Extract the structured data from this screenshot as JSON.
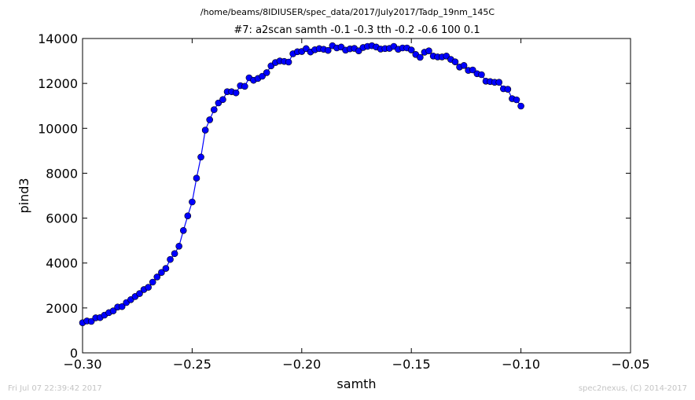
{
  "chart_data": {
    "type": "line",
    "title": "/home/beams/8IDIUSER/spec_data/2017/July2017/Tadp_19nm_145C",
    "subtitle": "#7: a2scan  samth -0.1 -0.3  tth -0.2 -0.6  100 0.1",
    "xlabel": "samth",
    "ylabel": "pind3",
    "xlim": [
      -0.3,
      -0.05
    ],
    "ylim": [
      0,
      14000
    ],
    "x_ticks": [
      "−0.30",
      "−0.25",
      "−0.20",
      "−0.15",
      "−0.10",
      "−0.05"
    ],
    "y_ticks": [
      "0",
      "2000",
      "4000",
      "6000",
      "8000",
      "10000",
      "12000",
      "14000"
    ],
    "grid": false,
    "series": [
      {
        "color": "#0000ff",
        "x": [
          -0.3,
          -0.298,
          -0.296,
          -0.294,
          -0.292,
          -0.29,
          -0.288,
          -0.286,
          -0.284,
          -0.282,
          -0.28,
          -0.278,
          -0.276,
          -0.274,
          -0.272,
          -0.27,
          -0.268,
          -0.266,
          -0.264,
          -0.262,
          -0.26,
          -0.258,
          -0.256,
          -0.254,
          -0.252,
          -0.25,
          -0.248,
          -0.246,
          -0.244,
          -0.242,
          -0.24,
          -0.238,
          -0.236,
          -0.234,
          -0.232,
          -0.23,
          -0.228,
          -0.226,
          -0.224,
          -0.222,
          -0.22,
          -0.218,
          -0.216,
          -0.214,
          -0.212,
          -0.21,
          -0.208,
          -0.206,
          -0.204,
          -0.202,
          -0.2,
          -0.198,
          -0.196,
          -0.194,
          -0.192,
          -0.19,
          -0.188,
          -0.186,
          -0.184,
          -0.182,
          -0.18,
          -0.178,
          -0.176,
          -0.174,
          -0.172,
          -0.17,
          -0.168,
          -0.166,
          -0.164,
          -0.162,
          -0.16,
          -0.158,
          -0.156,
          -0.154,
          -0.152,
          -0.15,
          -0.148,
          -0.146,
          -0.144,
          -0.142,
          -0.14,
          -0.138,
          -0.136,
          -0.134,
          -0.132,
          -0.13,
          -0.128,
          -0.126,
          -0.124,
          -0.122,
          -0.12,
          -0.118,
          -0.116,
          -0.114,
          -0.112,
          -0.11,
          -0.108,
          -0.106,
          -0.104,
          -0.102,
          -0.1
        ],
        "y": [
          1340,
          1420,
          1400,
          1560,
          1570,
          1680,
          1790,
          1870,
          2040,
          2060,
          2240,
          2370,
          2510,
          2640,
          2820,
          2920,
          3150,
          3380,
          3580,
          3760,
          4160,
          4420,
          4750,
          5450,
          6100,
          6720,
          7780,
          8720,
          9920,
          10380,
          10830,
          11130,
          11280,
          11630,
          11630,
          11580,
          11900,
          11870,
          12250,
          12140,
          12220,
          12320,
          12480,
          12780,
          12930,
          13000,
          12980,
          12950,
          13320,
          13410,
          13420,
          13550,
          13400,
          13500,
          13550,
          13520,
          13470,
          13680,
          13580,
          13620,
          13480,
          13540,
          13560,
          13450,
          13600,
          13650,
          13680,
          13620,
          13530,
          13550,
          13560,
          13650,
          13520,
          13580,
          13580,
          13490,
          13290,
          13160,
          13390,
          13450,
          13220,
          13180,
          13180,
          13220,
          13070,
          12960,
          12730,
          12800,
          12580,
          12600,
          12430,
          12390,
          12100,
          12080,
          12050,
          12050,
          11760,
          11740,
          11320,
          11270,
          10990
        ]
      }
    ]
  },
  "footer": {
    "left": "Fri Jul 07 22:39:42 2017",
    "right": "spec2nexus, (C) 2014-2017"
  }
}
